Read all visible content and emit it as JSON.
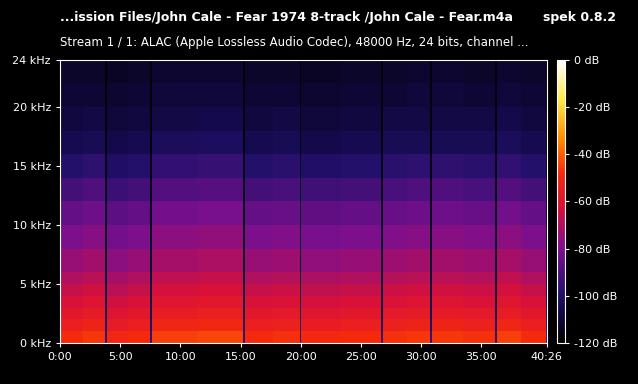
{
  "chart_data": {
    "type": "heatmap",
    "title": "...ission Files/John Cale - Fear 1974 8-track /John Cale - Fear.m4a",
    "subtitle": "Stream 1 / 1: ALAC (Apple Lossless Audio Codec), 48000 Hz, 24 bits, channel ...",
    "annotations": [
      "spek 0.8.2"
    ],
    "grid": false,
    "x_edges": [
      0,
      114,
      224,
      232,
      340,
      451,
      459,
      690,
      910,
      920,
      1060,
      1194,
      1202,
      1400,
      1600,
      1610,
      1730,
      1846,
      1854,
      2010,
      2170,
      2180,
      2300,
      2420,
      2426
    ],
    "y_edges": [
      0,
      1,
      2,
      3,
      4,
      5,
      6,
      8,
      10,
      12,
      14,
      16,
      18,
      20,
      22,
      24
    ],
    "cells": [
      [
        -48,
        -46,
        -95,
        -50,
        -48,
        -95,
        -45,
        -44,
        -95,
        -48,
        -47,
        -95,
        -49,
        -48,
        -95,
        -47,
        -46,
        -95,
        -46,
        -47,
        -95,
        -45,
        -48,
        -95
      ],
      [
        -54,
        -52,
        -100,
        -56,
        -54,
        -100,
        -51,
        -50,
        -100,
        -54,
        -53,
        -100,
        -55,
        -54,
        -100,
        -53,
        -52,
        -100,
        -52,
        -53,
        -100,
        -51,
        -54,
        -100
      ],
      [
        -58,
        -56,
        -104,
        -60,
        -58,
        -104,
        -55,
        -54,
        -104,
        -58,
        -57,
        -104,
        -59,
        -58,
        -104,
        -57,
        -56,
        -104,
        -56,
        -57,
        -104,
        -55,
        -58,
        -104
      ],
      [
        -62,
        -60,
        -106,
        -64,
        -62,
        -106,
        -59,
        -58,
        -106,
        -62,
        -61,
        -106,
        -63,
        -62,
        -106,
        -61,
        -60,
        -106,
        -60,
        -61,
        -106,
        -59,
        -62,
        -106
      ],
      [
        -66,
        -64,
        -108,
        -68,
        -66,
        -108,
        -63,
        -62,
        -108,
        -66,
        -65,
        -108,
        -67,
        -66,
        -108,
        -65,
        -64,
        -108,
        -64,
        -65,
        -108,
        -63,
        -66,
        -108
      ],
      [
        -70,
        -68,
        -110,
        -72,
        -70,
        -110,
        -67,
        -66,
        -110,
        -70,
        -69,
        -110,
        -71,
        -70,
        -110,
        -69,
        -68,
        -110,
        -68,
        -69,
        -110,
        -67,
        -70,
        -110
      ],
      [
        -75,
        -73,
        -112,
        -77,
        -75,
        -112,
        -72,
        -71,
        -112,
        -75,
        -74,
        -112,
        -76,
        -75,
        -112,
        -74,
        -73,
        -112,
        -73,
        -74,
        -112,
        -72,
        -75,
        -112
      ],
      [
        -80,
        -78,
        -113,
        -82,
        -80,
        -113,
        -77,
        -76,
        -113,
        -80,
        -79,
        -113,
        -81,
        -80,
        -113,
        -79,
        -78,
        -113,
        -78,
        -79,
        -113,
        -77,
        -80,
        -113
      ],
      [
        -85,
        -83,
        -114,
        -87,
        -85,
        -114,
        -82,
        -81,
        -114,
        -85,
        -84,
        -114,
        -86,
        -85,
        -114,
        -84,
        -83,
        -114,
        -83,
        -84,
        -114,
        -82,
        -85,
        -114
      ],
      [
        -92,
        -90,
        -115,
        -94,
        -92,
        -115,
        -89,
        -88,
        -115,
        -92,
        -91,
        -115,
        -93,
        -92,
        -115,
        -91,
        -90,
        -115,
        -90,
        -91,
        -115,
        -89,
        -92,
        -115
      ],
      [
        -99,
        -97,
        -116,
        -101,
        -99,
        -116,
        -96,
        -95,
        -116,
        -99,
        -98,
        -116,
        -100,
        -99,
        -116,
        -98,
        -97,
        -116,
        -97,
        -98,
        -116,
        -96,
        -99,
        -116
      ],
      [
        -105,
        -104,
        -117,
        -106,
        -105,
        -117,
        -103,
        -102,
        -117,
        -105,
        -104,
        -117,
        -106,
        -105,
        -117,
        -104,
        -104,
        -117,
        -104,
        -104,
        -117,
        -103,
        -105,
        -117
      ],
      [
        -108,
        -107,
        -118,
        -109,
        -108,
        -118,
        -107,
        -106,
        -118,
        -108,
        -107,
        -118,
        -109,
        -108,
        -118,
        -107,
        -107,
        -118,
        -107,
        -107,
        -118,
        -106,
        -108,
        -118
      ],
      [
        -110,
        -110,
        -118,
        -111,
        -110,
        -118,
        -109,
        -109,
        -118,
        -110,
        -110,
        -118,
        -111,
        -110,
        -118,
        -110,
        -109,
        -118,
        -109,
        -110,
        -118,
        -109,
        -110,
        -118
      ],
      [
        -112,
        -112,
        -118,
        -113,
        -112,
        -118,
        -111,
        -111,
        -118,
        -112,
        -112,
        -118,
        -113,
        -112,
        -118,
        -112,
        -111,
        -118,
        -111,
        -112,
        -118,
        -111,
        -112,
        -118
      ]
    ],
    "xlim": [
      0,
      2426
    ],
    "xticks": [
      {
        "value": 0,
        "label": "0:00"
      },
      {
        "value": 300,
        "label": "5:00"
      },
      {
        "value": 600,
        "label": "10:00"
      },
      {
        "value": 900,
        "label": "15:00"
      },
      {
        "value": 1200,
        "label": "20:00"
      },
      {
        "value": 1500,
        "label": "25:00"
      },
      {
        "value": 1800,
        "label": "30:00"
      },
      {
        "value": 2100,
        "label": "35:00"
      },
      {
        "value": 2426,
        "label": "40:26"
      }
    ],
    "ylim": [
      0,
      24
    ],
    "yticks": [
      {
        "value": 0,
        "label": "0 kHz"
      },
      {
        "value": 5,
        "label": "5 kHz"
      },
      {
        "value": 10,
        "label": "10 kHz"
      },
      {
        "value": 15,
        "label": "15 kHz"
      },
      {
        "value": 20,
        "label": "20 kHz"
      },
      {
        "value": 24,
        "label": "24 kHz"
      }
    ],
    "colorbar": {
      "range": [
        -120,
        0
      ],
      "ticks": [
        {
          "value": 0,
          "label": "0 dB"
        },
        {
          "value": -20,
          "label": "-20 dB"
        },
        {
          "value": -40,
          "label": "-40 dB"
        },
        {
          "value": -60,
          "label": "-60 dB"
        },
        {
          "value": -80,
          "label": "-80 dB"
        },
        {
          "value": -100,
          "label": "-100 dB"
        },
        {
          "value": -120,
          "label": "-120 dB"
        }
      ]
    }
  }
}
